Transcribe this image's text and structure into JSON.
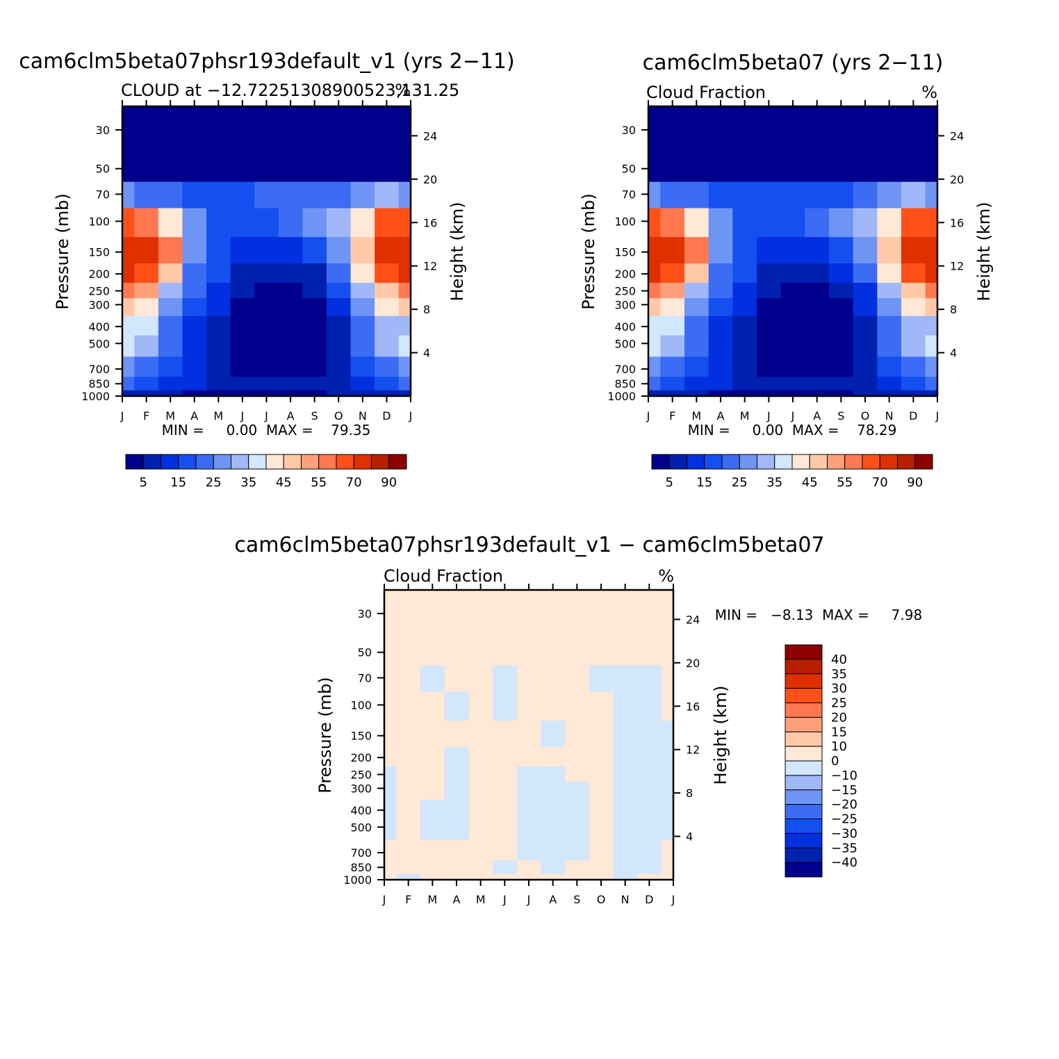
{
  "months": [
    "J",
    "F",
    "M",
    "A",
    "M",
    "J",
    "J",
    "A",
    "S",
    "O",
    "N",
    "D",
    "J"
  ],
  "pressure_ticks": [
    30,
    50,
    70,
    100,
    150,
    200,
    250,
    300,
    400,
    500,
    700,
    850,
    1000
  ],
  "height_ticks": [
    4,
    8,
    12,
    16,
    20,
    24
  ],
  "ylabel_left": "Pressure (mb)",
  "ylabel_right": "Height (km)",
  "panels": [
    {
      "title": "cam6clm5beta07phsr193default_v1 (yrs 2−11)",
      "subtitle_left": "CLOUD at −12.72251308900523,131.25",
      "subtitle_right": "%",
      "stats": "MIN =     0.00  MAX =    79.35"
    },
    {
      "title": "cam6clm5beta07 (yrs 2−11)",
      "subtitle_left": "Cloud Fraction",
      "subtitle_right": "%",
      "stats": "MIN =     0.00  MAX =    78.29"
    },
    {
      "title": "cam6clm5beta07phsr193default_v1 − cam6clm5beta07",
      "subtitle_left": "Cloud Fraction",
      "subtitle_right": "%",
      "stats": "MIN =   −8.13  MAX =     7.98"
    }
  ],
  "colorbar_main": {
    "colors": [
      "#00008c",
      "#0020b0",
      "#0030e0",
      "#1450f0",
      "#3c6cf4",
      "#6e94f4",
      "#a0b8f8",
      "#d2e6fc",
      "#ffe8d6",
      "#ffc8a8",
      "#ffa07a",
      "#ff7850",
      "#ff5018",
      "#e03000",
      "#b81e00",
      "#8c0000"
    ],
    "labels": [
      "5",
      "15",
      "25",
      "35",
      "45",
      "55",
      "70",
      "90"
    ]
  },
  "colorbar_diff": {
    "colors": [
      "#00008c",
      "#0020b0",
      "#0030e0",
      "#1450f0",
      "#3c6cf4",
      "#6e94f4",
      "#a0b8f8",
      "#d2e6fc",
      "#ffe8d6",
      "#ffc8a8",
      "#ffa07a",
      "#ff7850",
      "#ff5018",
      "#e03000",
      "#b81e00",
      "#8c0000"
    ],
    "labels": [
      "40",
      "35",
      "30",
      "25",
      "20",
      "15",
      "10",
      "0",
      "−10",
      "−15",
      "−20",
      "−25",
      "−30",
      "−35",
      "−40"
    ]
  },
  "chart_data": [
    {
      "type": "heatmap",
      "title": "cam6clm5beta07phsr193default_v1 (yrs 2−11)",
      "subtitle": "CLOUD at −12.72251308900523,131.25",
      "units": "%",
      "x_categories": [
        "J",
        "F",
        "M",
        "A",
        "M",
        "J",
        "J",
        "A",
        "S",
        "O",
        "N",
        "D",
        "J"
      ],
      "y_pressure_mb": [
        1000,
        850,
        700,
        500,
        400,
        300,
        250,
        200,
        150,
        100,
        70,
        50,
        30
      ],
      "ylabel": "Pressure (mb)",
      "y2label": "Height (km)",
      "min": 0.0,
      "max": 79.35,
      "values": [
        [
          5,
          5,
          5,
          4,
          3,
          3,
          3,
          3,
          4,
          5,
          5,
          5,
          5
        ],
        [
          20,
          17,
          14,
          10,
          8,
          6,
          5,
          5,
          6,
          9,
          14,
          18,
          20
        ],
        [
          25,
          22,
          17,
          11,
          7,
          3,
          2,
          2,
          3,
          8,
          15,
          22,
          25
        ],
        [
          38,
          34,
          22,
          12,
          7,
          2,
          1,
          1,
          2,
          8,
          20,
          30,
          36
        ],
        [
          38,
          36,
          24,
          14,
          7,
          2,
          1,
          1,
          2,
          8,
          22,
          31,
          33
        ],
        [
          45,
          40,
          28,
          18,
          10,
          4,
          2,
          2,
          3,
          12,
          27,
          40,
          45
        ],
        [
          55,
          50,
          32,
          20,
          12,
          6,
          3,
          3,
          5,
          15,
          32,
          48,
          55
        ],
        [
          72,
          65,
          45,
          24,
          15,
          8,
          5,
          5,
          8,
          20,
          40,
          65,
          72
        ],
        [
          79,
          73,
          55,
          28,
          18,
          12,
          10,
          10,
          15,
          27,
          46,
          75,
          79
        ],
        [
          62,
          55,
          42,
          25,
          18,
          15,
          18,
          22,
          25,
          30,
          42,
          62,
          62
        ],
        [
          28,
          24,
          20,
          17,
          16,
          17,
          20,
          20,
          21,
          23,
          28,
          30,
          28
        ],
        [
          3,
          3,
          3,
          3,
          3,
          3,
          3,
          3,
          3,
          3,
          3,
          3,
          3
        ],
        [
          1,
          1,
          1,
          1,
          1,
          1,
          1,
          1,
          1,
          1,
          1,
          1,
          1
        ]
      ]
    },
    {
      "type": "heatmap",
      "title": "cam6clm5beta07 (yrs 2−11)",
      "subtitle": "Cloud Fraction",
      "units": "%",
      "x_categories": [
        "J",
        "F",
        "M",
        "A",
        "M",
        "J",
        "J",
        "A",
        "S",
        "O",
        "N",
        "D",
        "J"
      ],
      "y_pressure_mb": [
        1000,
        850,
        700,
        500,
        400,
        300,
        250,
        200,
        150,
        100,
        70,
        50,
        30
      ],
      "ylabel": "Pressure (mb)",
      "y2label": "Height (km)",
      "min": 0.0,
      "max": 78.29,
      "values": [
        [
          5,
          5,
          5,
          4,
          3,
          3,
          3,
          3,
          4,
          5,
          5,
          5,
          5
        ],
        [
          20,
          17,
          14,
          10,
          8,
          6,
          5,
          5,
          6,
          9,
          14,
          18,
          20
        ],
        [
          25,
          22,
          17,
          11,
          6,
          3,
          2,
          2,
          3,
          8,
          15,
          22,
          25
        ],
        [
          37,
          34,
          22,
          12,
          5,
          2,
          1,
          1,
          2,
          8,
          20,
          30,
          36
        ],
        [
          38,
          36,
          24,
          14,
          6,
          2,
          1,
          1,
          2,
          8,
          22,
          31,
          33
        ],
        [
          45,
          40,
          28,
          18,
          10,
          4,
          2,
          2,
          3,
          10,
          27,
          40,
          45
        ],
        [
          55,
          50,
          32,
          20,
          12,
          6,
          3,
          3,
          5,
          14,
          32,
          48,
          55
        ],
        [
          72,
          65,
          45,
          24,
          15,
          8,
          6,
          6,
          10,
          20,
          40,
          65,
          72
        ],
        [
          78,
          73,
          55,
          28,
          18,
          13,
          11,
          12,
          16,
          27,
          46,
          75,
          78
        ],
        [
          62,
          55,
          42,
          25,
          19,
          17,
          18,
          22,
          25,
          30,
          42,
          62,
          62
        ],
        [
          28,
          24,
          20,
          17,
          16,
          16,
          16,
          17,
          19,
          22,
          28,
          30,
          28
        ],
        [
          3,
          3,
          3,
          3,
          3,
          3,
          3,
          3,
          3,
          3,
          3,
          3,
          3
        ],
        [
          1,
          1,
          1,
          1,
          1,
          1,
          1,
          1,
          1,
          1,
          1,
          1,
          1
        ]
      ]
    },
    {
      "type": "heatmap",
      "title": "cam6clm5beta07phsr193default_v1 − cam6clm5beta07",
      "subtitle": "Cloud Fraction",
      "units": "%",
      "x_categories": [
        "J",
        "F",
        "M",
        "A",
        "M",
        "J",
        "J",
        "A",
        "S",
        "O",
        "N",
        "D",
        "J"
      ],
      "y_pressure_mb": [
        1000,
        850,
        700,
        500,
        400,
        300,
        250,
        200,
        150,
        100,
        70,
        50,
        30
      ],
      "ylabel": "Pressure (mb)",
      "y2label": "Height (km)",
      "min": -8.13,
      "max": 7.98,
      "values": [
        [
          2,
          -1,
          2,
          2,
          2,
          2,
          2,
          2,
          2,
          2,
          -1,
          2,
          2
        ],
        [
          2,
          2,
          2,
          2,
          2,
          -2,
          2,
          -1,
          2,
          2,
          -2,
          -2,
          2
        ],
        [
          2,
          2,
          2,
          2,
          2,
          2,
          -2,
          -2,
          -2,
          2,
          -2,
          -2,
          2
        ],
        [
          -1,
          2,
          -2,
          -2,
          2,
          2,
          -2,
          -2,
          -2,
          2,
          -2,
          -2,
          -2
        ],
        [
          -1,
          2,
          -2,
          -2,
          2,
          2,
          -2,
          -2,
          -2,
          2,
          -2,
          -2,
          -2
        ],
        [
          -1,
          2,
          2,
          -2,
          2,
          2,
          -2,
          -2,
          -2,
          2,
          -2,
          -2,
          -2
        ],
        [
          -1,
          2,
          2,
          -2,
          2,
          2,
          -2,
          -2,
          2,
          2,
          -2,
          -2,
          -2
        ],
        [
          2,
          2,
          2,
          -2,
          2,
          2,
          2,
          2,
          2,
          2,
          -2,
          -2,
          -2
        ],
        [
          2,
          2,
          2,
          2,
          2,
          2,
          2,
          -2,
          2,
          2,
          -2,
          -2,
          -2
        ],
        [
          2,
          2,
          2,
          -2,
          2,
          -2,
          2,
          2,
          2,
          2,
          -2,
          -2,
          2
        ],
        [
          2,
          2,
          -2,
          2,
          2,
          -2,
          2,
          2,
          2,
          -2,
          -2,
          -2,
          2
        ],
        [
          2,
          2,
          2,
          2,
          2,
          2,
          2,
          2,
          2,
          2,
          2,
          2,
          2
        ],
        [
          2,
          2,
          2,
          2,
          2,
          2,
          2,
          2,
          2,
          2,
          2,
          2,
          2
        ]
      ]
    }
  ]
}
